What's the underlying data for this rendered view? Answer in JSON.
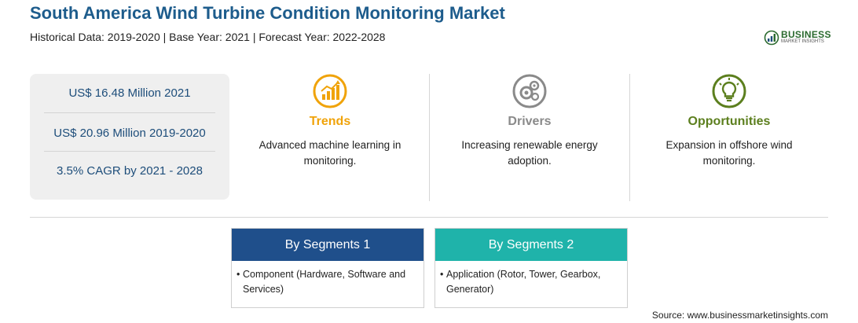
{
  "header": {
    "title": "South America Wind Turbine Condition Monitoring Market",
    "subtitle": "Historical Data: 2019-2020 | Base Year: 2021 | Forecast Year: 2022-2028"
  },
  "logo": {
    "name": "BUSINESS",
    "tagline": "MARKET INSIGHTS"
  },
  "stats": [
    {
      "text": "US$ 16.48 Million 2021"
    },
    {
      "text": "US$ 20.96 Million 2019-2020"
    },
    {
      "text": "3.5% CAGR by 2021 - 2028"
    }
  ],
  "columns": [
    {
      "heading": "Trends",
      "icon": "trend-chart-icon",
      "color": "#f0a30a",
      "text": "Advanced machine learning in monitoring."
    },
    {
      "heading": "Drivers",
      "icon": "gears-icon",
      "color": "#8a8a8a",
      "text": "Increasing renewable energy adoption."
    },
    {
      "heading": "Opportunities",
      "icon": "lightbulb-icon",
      "color": "#5c7f1e",
      "text": "Expansion in offshore wind monitoring."
    }
  ],
  "segments": [
    {
      "heading": "By Segments 1",
      "color": "#1f4f8b",
      "bullet": "•",
      "item": "Component (Hardware, Software and Services)"
    },
    {
      "heading": "By Segments 2",
      "color": "#1fb3aa",
      "bullet": "•",
      "item": "Application (Rotor, Tower, Gearbox, Generator)"
    }
  ],
  "footer": {
    "source": "Source: www.businessmarketinsights.com"
  }
}
